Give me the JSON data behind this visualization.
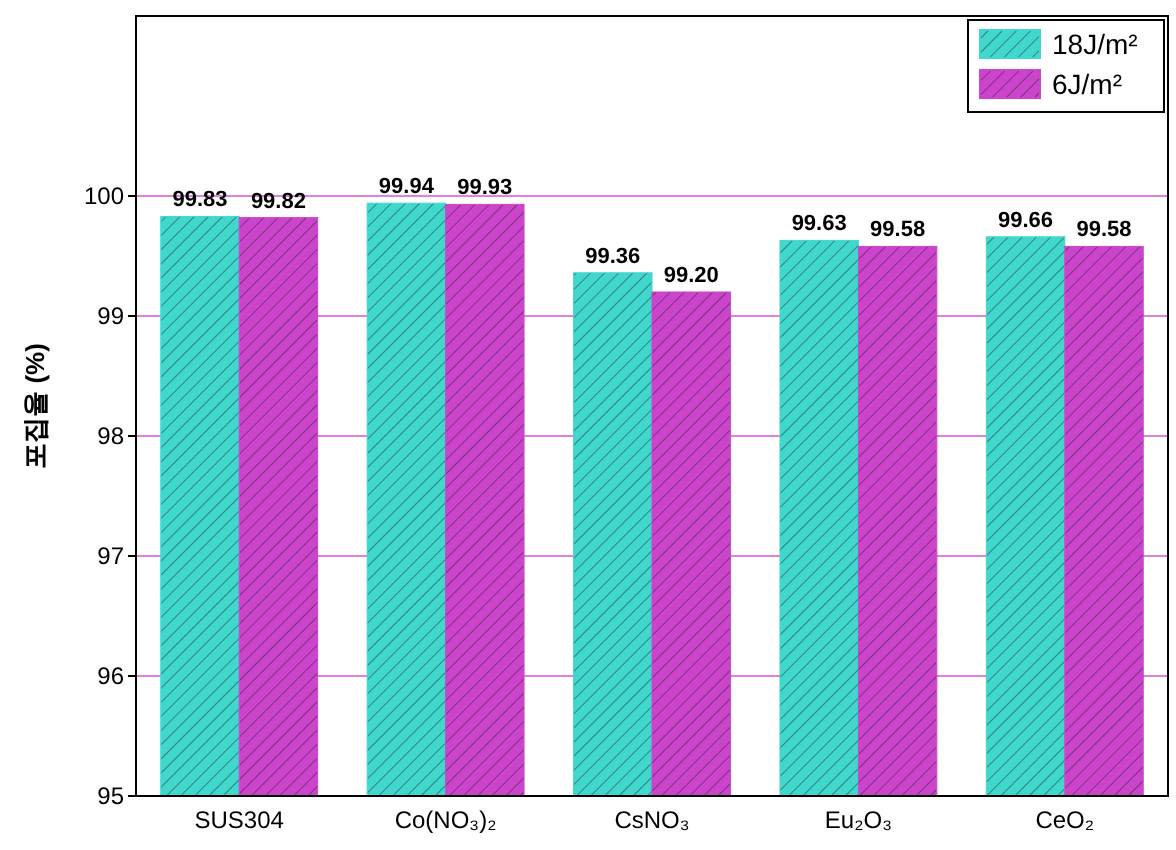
{
  "chart_data": {
    "type": "bar",
    "ylabel": "포집율 (%)",
    "categories": [
      "SUS304",
      "Co(NO₃)₂",
      "CsNO₃",
      "Eu₂O₃",
      "CeO₂"
    ],
    "series": [
      {
        "name": "18J/m²",
        "color": "#40d8cc",
        "values": [
          99.83,
          99.94,
          99.36,
          99.63,
          99.66
        ],
        "value_labels": [
          "99.83",
          "99.94",
          "99.36",
          "99.63",
          "99.66"
        ]
      },
      {
        "name": "6J/m²",
        "color": "#cc44cc",
        "values": [
          99.82,
          99.93,
          99.2,
          99.58,
          99.58
        ],
        "value_labels": [
          "99.82",
          "99.93",
          "99.20",
          "99.58",
          "99.58"
        ]
      }
    ],
    "ylim": [
      95,
      101.5
    ],
    "yticks": [
      95,
      96,
      97,
      98,
      99,
      100
    ],
    "grid": "y",
    "legend": "top right"
  }
}
